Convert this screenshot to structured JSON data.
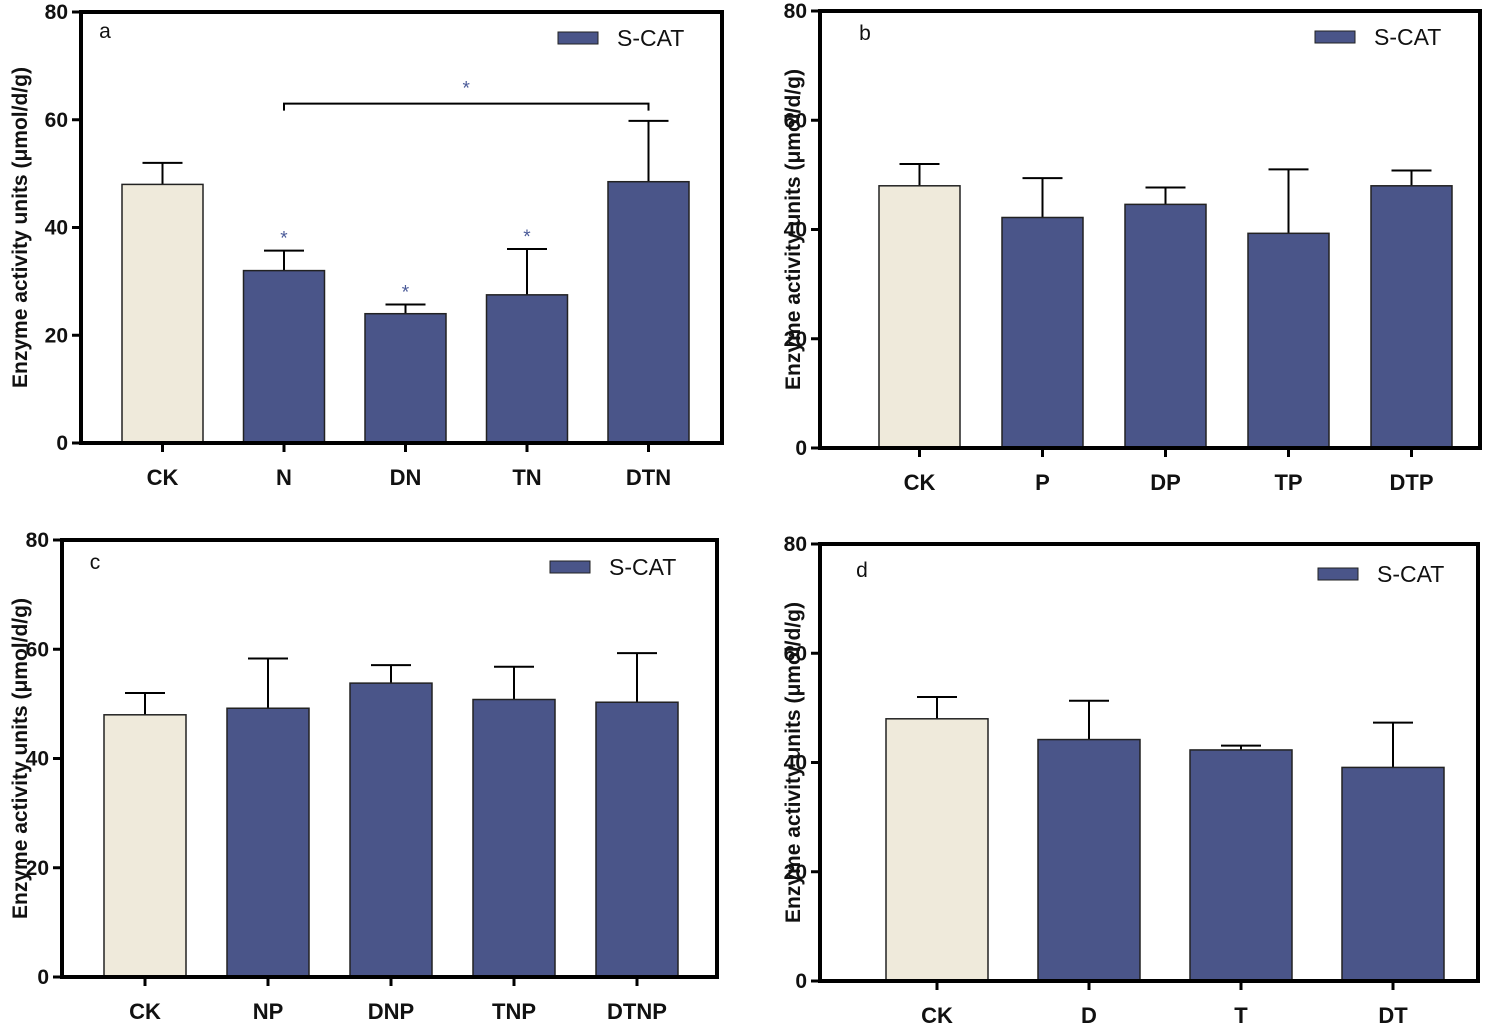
{
  "colors": {
    "control": "#efeadb",
    "treatment": "#4a5589",
    "axis": "#000000",
    "significance": "#4a5a98"
  },
  "chart_data": [
    {
      "type": "bar",
      "panel": "a",
      "legend": "S-CAT",
      "ylabel": "Enzyme activity units (μmol/d/g)",
      "ylim": [
        0,
        80
      ],
      "yticks": [
        0,
        20,
        40,
        60,
        80
      ],
      "categories": [
        "CK",
        "N",
        "DN",
        "TN",
        "DTN"
      ],
      "values": [
        48,
        32,
        24,
        27.5,
        48.5
      ],
      "errors": [
        4,
        3.7,
        1.7,
        8.5,
        11.3
      ],
      "bar_colors": [
        "control",
        "treatment",
        "treatment",
        "treatment",
        "treatment"
      ],
      "annotations": {
        "stars": [
          "",
          "*",
          "*",
          "*",
          ""
        ],
        "bracket": {
          "from": 1,
          "to": 4,
          "label": "*",
          "value": 63
        }
      }
    },
    {
      "type": "bar",
      "panel": "b",
      "legend": "S-CAT",
      "ylabel": "Enzyme activity units (μmol/d/g)",
      "ylim": [
        0,
        80
      ],
      "yticks": [
        0,
        20,
        40,
        60,
        80
      ],
      "categories": [
        "CK",
        "P",
        "DP",
        "TP",
        "DTP"
      ],
      "values": [
        48,
        42.2,
        44.6,
        39.3,
        48
      ],
      "errors": [
        4,
        7.2,
        3.1,
        11.7,
        2.8
      ],
      "bar_colors": [
        "control",
        "treatment",
        "treatment",
        "treatment",
        "treatment"
      ]
    },
    {
      "type": "bar",
      "panel": "c",
      "legend": "S-CAT",
      "ylabel": "Enzyme activity units (μmol/d/g)",
      "ylim": [
        0,
        80
      ],
      "yticks": [
        0,
        20,
        40,
        60,
        80
      ],
      "categories": [
        "CK",
        "NP",
        "DNP",
        "TNP",
        "DTNP"
      ],
      "values": [
        48,
        49.2,
        53.8,
        50.8,
        50.3
      ],
      "errors": [
        4,
        9.1,
        3.3,
        6,
        9
      ],
      "bar_colors": [
        "control",
        "treatment",
        "treatment",
        "treatment",
        "treatment"
      ]
    },
    {
      "type": "bar",
      "panel": "d",
      "legend": "S-CAT",
      "ylabel": "Enzyme activity units (μmol/d/g)",
      "ylim": [
        0,
        80
      ],
      "yticks": [
        0,
        20,
        40,
        60,
        80
      ],
      "categories": [
        "CK",
        "D",
        "T",
        "DT"
      ],
      "values": [
        48,
        44.2,
        42.3,
        39.1
      ],
      "errors": [
        4,
        7.1,
        0.8,
        8.2
      ],
      "bar_colors": [
        "control",
        "treatment",
        "treatment",
        "treatment"
      ]
    }
  ]
}
